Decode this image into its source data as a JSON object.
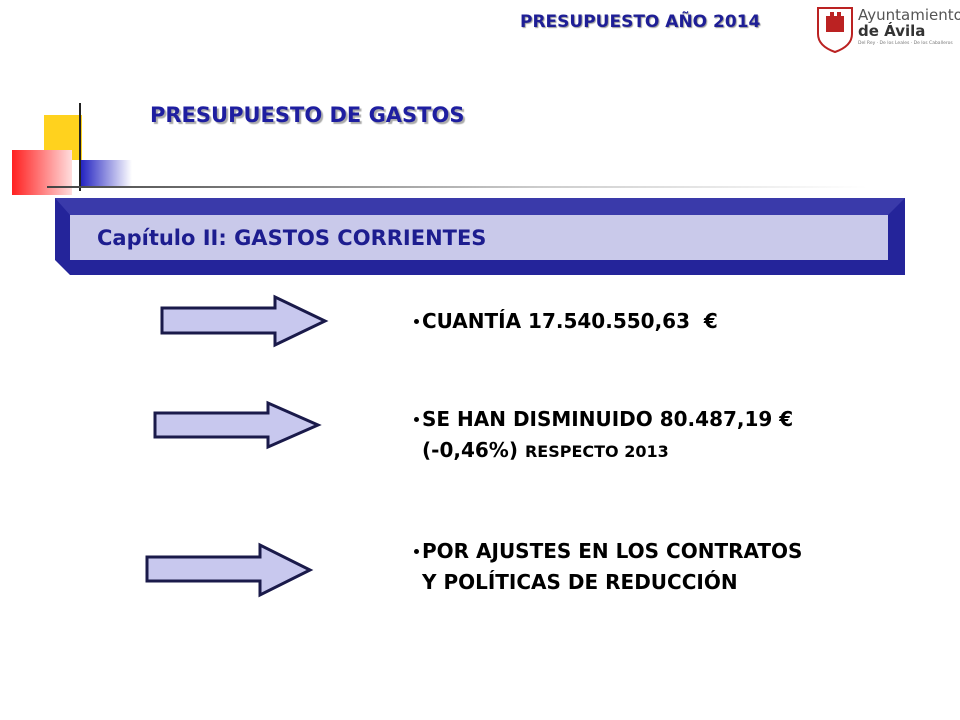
{
  "header": {
    "title": "PRESUPUESTO AÑO 2014",
    "logo": {
      "line1": "Ayuntamiento",
      "line2": "de Ávila",
      "motto": "Del Rey · De los Leales · De los Caballeros"
    }
  },
  "slide": {
    "title": "PRESUPUESTO DE GASTOS",
    "banner": "Capítulo II: GASTOS CORRIENTES",
    "bullets": [
      {
        "lines": [
          "CUANTÍA 17.540.550,63  €"
        ]
      },
      {
        "lines": [
          "SE HAN DISMINUIDO 80.487,19 €",
          "(-0,46%)"
        ],
        "suffix": "RESPECTO 2013"
      },
      {
        "lines": [
          "POR AJUSTES EN LOS CONTRATOS",
          "Y POLÍTICAS DE REDUCCIÓN"
        ]
      }
    ]
  }
}
